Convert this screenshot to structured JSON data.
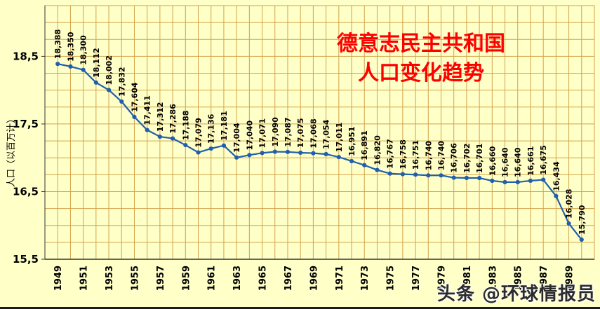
{
  "watermark": {
    "text": "头条 @环球情报员"
  },
  "chart_data": {
    "type": "line",
    "title_lines": [
      "德意志民主共和国",
      "人口变化趋势"
    ],
    "title_color": "#ff0000",
    "ylabel": "人口（以百万计）",
    "ylim": [
      15.5,
      19.25
    ],
    "y_grid_step": 0.25,
    "y_ticks": [
      {
        "value": 18.5,
        "label": "18,5"
      },
      {
        "value": 17.5,
        "label": "17,5"
      },
      {
        "value": 16.5,
        "label": "16,5"
      },
      {
        "value": 15.5,
        "label": "15,5"
      }
    ],
    "years": [
      1949,
      1950,
      1951,
      1952,
      1953,
      1954,
      1955,
      1956,
      1957,
      1958,
      1959,
      1960,
      1961,
      1962,
      1963,
      1964,
      1965,
      1966,
      1967,
      1968,
      1969,
      1970,
      1971,
      1972,
      1973,
      1974,
      1975,
      1976,
      1977,
      1978,
      1979,
      1980,
      1981,
      1982,
      1983,
      1984,
      1985,
      1986,
      1987,
      1988,
      1989,
      1990
    ],
    "values": [
      18.388,
      18.35,
      18.3,
      18.112,
      18.002,
      17.832,
      17.604,
      17.411,
      17.312,
      17.286,
      17.188,
      17.079,
      17.136,
      17.181,
      17.004,
      17.04,
      17.071,
      17.09,
      17.087,
      17.075,
      17.068,
      17.054,
      17.011,
      16.951,
      16.891,
      16.82,
      16.767,
      16.758,
      16.751,
      16.74,
      16.74,
      16.706,
      16.702,
      16.701,
      16.66,
      16.64,
      16.64,
      16.661,
      16.675,
      16.434,
      16.028,
      15.79
    ],
    "point_labels": [
      "18,388",
      "18,350",
      "18,300",
      "18,112",
      "18,002",
      "17,832",
      "17,604",
      "17,411",
      "17,312",
      "17,286",
      "17,188",
      "17,079",
      "17,136",
      "17,181",
      "17,004",
      "17,040",
      "17,071",
      "17,090",
      "17,087",
      "17,075",
      "17,068",
      "17,054",
      "17,011",
      "16,951",
      "16,891",
      "16,820",
      "16,767",
      "16,758",
      "16,751",
      "16,740",
      "16,740",
      "16,706",
      "16,702",
      "16,701",
      "16,660",
      "16,640",
      "16,640",
      "16,661",
      "16,675",
      "16,434",
      "16,028",
      "15,790"
    ],
    "x_tick_years": [
      "1949",
      "1951",
      "1953",
      "1955",
      "1957",
      "1959",
      "1961",
      "1963",
      "1965",
      "1967",
      "1969",
      "1971",
      "1973",
      "1975",
      "1977",
      "1979",
      "1981",
      "1983",
      "1985",
      "1987",
      "1989"
    ],
    "grid": true,
    "legend_position": "none",
    "colors": {
      "background": "#ffffc8",
      "grid": "#d2a24c",
      "line": "#1f5fae",
      "marker": "#1f5fae",
      "axis": "#333333",
      "tick_text": "#000000",
      "point_label_text": "#000000"
    }
  }
}
